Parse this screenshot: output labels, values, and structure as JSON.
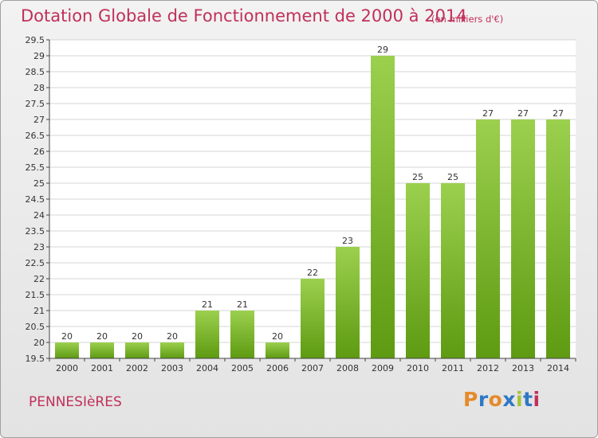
{
  "header": {
    "title": "Dotation Globale de Fonctionnement de 2000 à 2014",
    "unit_note": "(en milliers d'€)"
  },
  "footer": {
    "commune": "PENNESIèRES",
    "logo_text": "Proxiti",
    "logo_colors": [
      "#e58a2a",
      "#2f78c4",
      "#e58a2a",
      "#2f78c4",
      "#a6c23a",
      "#2f78c4",
      "#c0305a"
    ]
  },
  "colors": {
    "bar_top": "#9bd04e",
    "bar_bottom": "#5e9a12",
    "text_accent": "#c0305a"
  },
  "chart_data": {
    "type": "bar",
    "title": "Dotation Globale de Fonctionnement de 2000 à 2014",
    "subtitle": "(en milliers d'€)",
    "categories": [
      "2000",
      "2001",
      "2002",
      "2003",
      "2004",
      "2005",
      "2006",
      "2007",
      "2008",
      "2009",
      "2010",
      "2011",
      "2012",
      "2013",
      "2014"
    ],
    "values": [
      20,
      20,
      20,
      20,
      21,
      21,
      20,
      22,
      23,
      29,
      25,
      25,
      27,
      27,
      27
    ],
    "ylim": [
      19.5,
      29.5
    ],
    "yticks": [
      "19.5",
      "20",
      "20.5",
      "21",
      "21.5",
      "22",
      "22.5",
      "23",
      "23.5",
      "24",
      "24.5",
      "25",
      "25.5",
      "26",
      "26.5",
      "27",
      "27.5",
      "28",
      "28.5",
      "29",
      "29.5"
    ],
    "grid": true,
    "legend": "none"
  }
}
